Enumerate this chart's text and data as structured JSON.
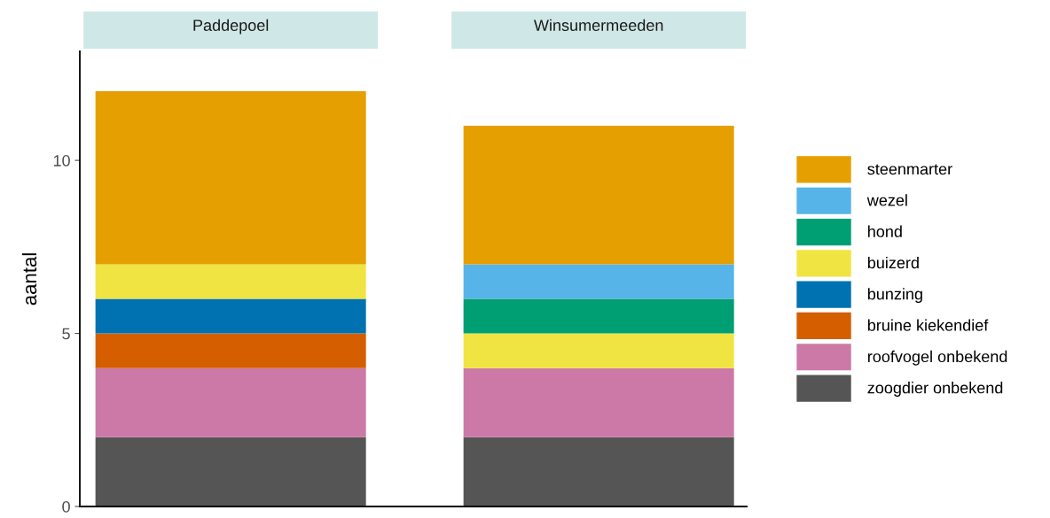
{
  "chart_data": {
    "type": "bar",
    "ylabel": "aantal",
    "stacked": true,
    "categories": [
      "Paddepoel",
      "Winsumermeeden"
    ],
    "ylim": [
      0,
      13.15
    ],
    "yticks": [
      0,
      5,
      10
    ],
    "grid": false,
    "legend": "right",
    "series": [
      {
        "name": "zoogdier onbekend",
        "color": "#555555",
        "values": [
          2,
          2
        ]
      },
      {
        "name": "roofvogel onbekend",
        "color": "#cc79a7",
        "values": [
          2,
          2
        ]
      },
      {
        "name": "bruine kiekendief",
        "color": "#d55e00",
        "values": [
          1,
          null
        ]
      },
      {
        "name": "bunzing",
        "color": "#0072b2",
        "values": [
          1,
          null
        ]
      },
      {
        "name": "buizerd",
        "color": "#f0e442",
        "values": [
          1,
          1
        ]
      },
      {
        "name": "hond",
        "color": "#009e73",
        "values": [
          null,
          1
        ]
      },
      {
        "name": "wezel",
        "color": "#56b4e9",
        "values": [
          null,
          1
        ]
      },
      {
        "name": "steenmarter",
        "color": "#e69f00",
        "values": [
          5,
          4
        ]
      }
    ]
  }
}
